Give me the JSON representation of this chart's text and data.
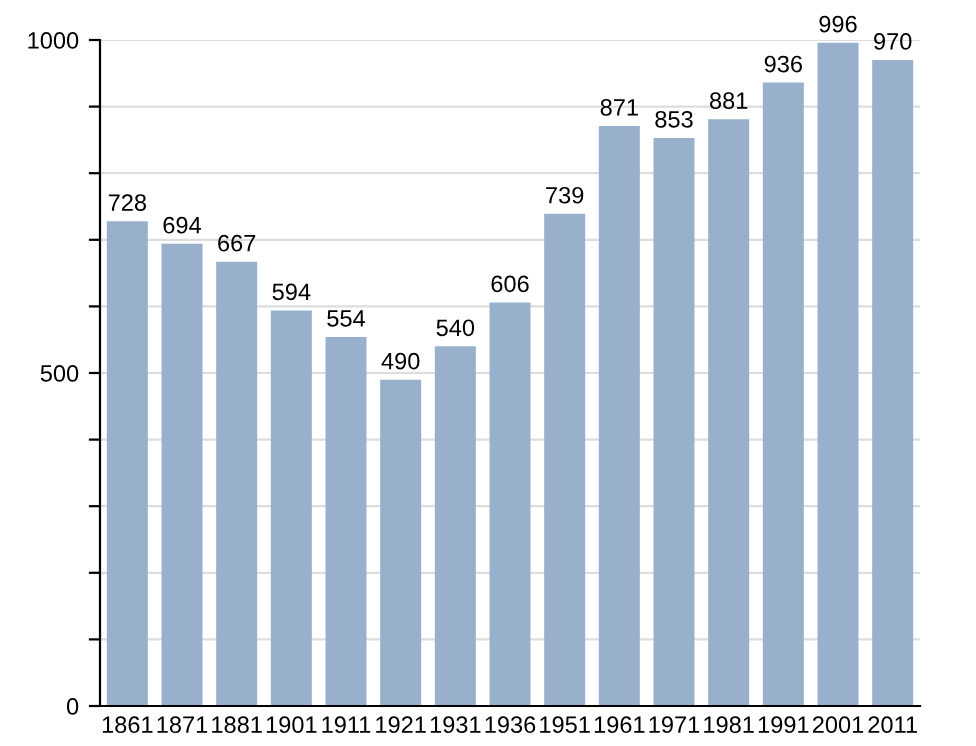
{
  "chart_data": {
    "type": "bar",
    "categories": [
      "1861",
      "1871",
      "1881",
      "1901",
      "1911",
      "1921",
      "1931",
      "1936",
      "1951",
      "1961",
      "1971",
      "1981",
      "1991",
      "2001",
      "2011"
    ],
    "values": [
      728,
      694,
      667,
      594,
      554,
      490,
      540,
      606,
      739,
      871,
      853,
      881,
      936,
      996,
      970
    ],
    "color": "#98b0cc",
    "ylim": [
      0,
      1000
    ],
    "yticks": [
      0,
      {
        "value": 100,
        "label": null
      },
      {
        "value": 200,
        "label": null
      },
      {
        "value": 300,
        "label": null
      },
      {
        "value": 400,
        "label": null
      },
      500,
      {
        "value": 600,
        "label": null
      },
      {
        "value": 700,
        "label": null
      },
      {
        "value": 800,
        "label": null
      },
      {
        "value": 900,
        "label": null
      },
      1000
    ],
    "grid": "y",
    "data_labels": true
  }
}
